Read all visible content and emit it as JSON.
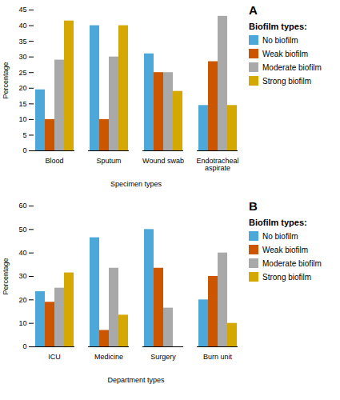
{
  "chart_data": [
    {
      "type": "bar",
      "title": "A",
      "categories": [
        "Blood",
        "Sputum",
        "Wound swab",
        "Endotracheal\naspirate"
      ],
      "series": [
        {
          "name": "No biofilm",
          "color": "#4ca8d8",
          "values": [
            19.5,
            40.0,
            31.0,
            14.5
          ]
        },
        {
          "name": "Weak biofilm",
          "color": "#cc5500",
          "values": [
            10.0,
            10.0,
            25.0,
            28.5
          ]
        },
        {
          "name": "Moderate biofilm",
          "color": "#a9a9a9",
          "values": [
            29.0,
            30.0,
            25.0,
            43.0
          ]
        },
        {
          "name": "Strong biofilm",
          "color": "#d4a800",
          "values": [
            41.5,
            40.0,
            19.0,
            14.5
          ]
        }
      ],
      "xlabel": "Specimen types",
      "ylabel": "Percentage",
      "ylim": [
        0,
        45
      ],
      "yticks": [
        0,
        5,
        10,
        15,
        20,
        25,
        30,
        35,
        40,
        45
      ],
      "legend": "right",
      "legend_title": "Biofilm types:"
    },
    {
      "type": "bar",
      "title": "B",
      "categories": [
        "ICU",
        "Medicine",
        "Surgery",
        "Burn unit"
      ],
      "series": [
        {
          "name": "No biofilm",
          "color": "#4ca8d8",
          "values": [
            23.5,
            46.5,
            50.0,
            20.0
          ]
        },
        {
          "name": "Weak biofilm",
          "color": "#cc5500",
          "values": [
            19.0,
            7.0,
            33.5,
            30.0
          ]
        },
        {
          "name": "Moderate biofilm",
          "color": "#a9a9a9",
          "values": [
            25.0,
            33.5,
            16.5,
            40.0
          ]
        },
        {
          "name": "Strong biofilm",
          "color": "#d4a800",
          "values": [
            31.5,
            13.5,
            0.0,
            10.0
          ]
        }
      ],
      "xlabel": "Department types",
      "ylabel": "Percentage",
      "ylim": [
        0,
        60
      ],
      "yticks": [
        0,
        10,
        20,
        30,
        40,
        50,
        60
      ],
      "legend": "right",
      "legend_title": "Biofilm types:"
    }
  ]
}
